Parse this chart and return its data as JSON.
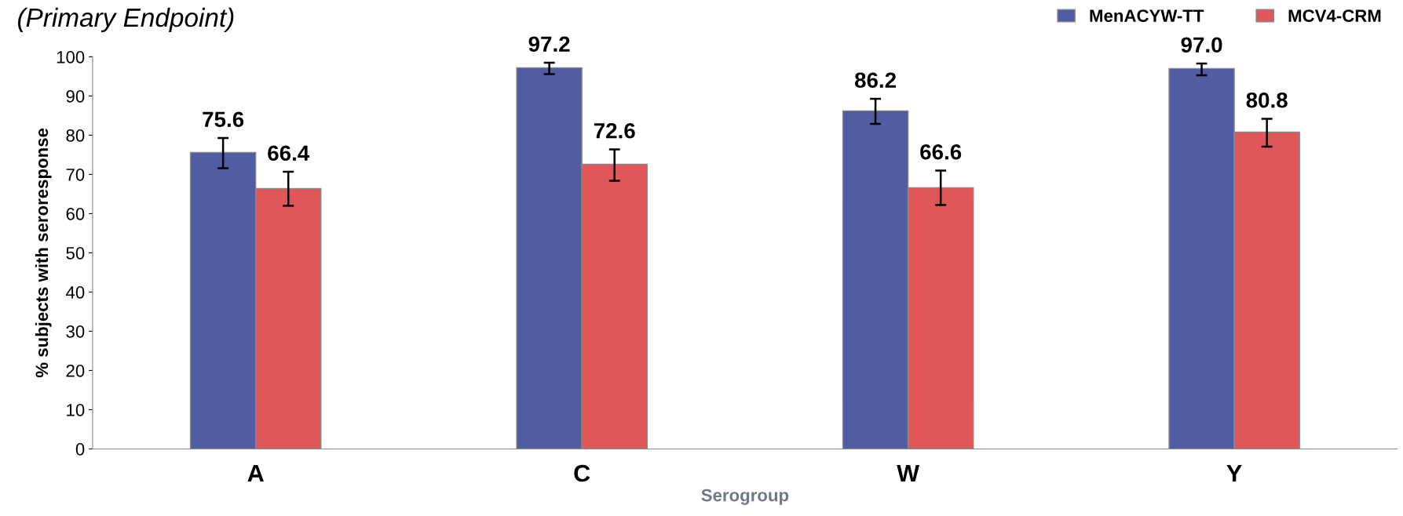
{
  "chart_data": {
    "type": "bar",
    "title": "(Primary Endpoint)",
    "xlabel": "Serogroup",
    "ylabel": "% subjects with seroresponse",
    "categories": [
      "A",
      "C",
      "W",
      "Y"
    ],
    "series": [
      {
        "name": "MenACYW-TT",
        "color": "#525ca3",
        "values": [
          75.6,
          97.2,
          86.2,
          97.0
        ],
        "value_labels": [
          "75.6",
          "97.2",
          "86.2",
          "97.0"
        ],
        "errors": [
          [
            71.6,
            79.3
          ],
          [
            95.6,
            98.5
          ],
          [
            82.9,
            89.3
          ],
          [
            95.3,
            98.3
          ]
        ]
      },
      {
        "name": "MCV4-CRM",
        "color": "#e0575a",
        "values": [
          66.4,
          72.6,
          66.6,
          80.8
        ],
        "value_labels": [
          "66.4",
          "72.6",
          "66.6",
          "80.8"
        ],
        "errors": [
          [
            62.0,
            70.7
          ],
          [
            68.4,
            76.4
          ],
          [
            62.2,
            71.0
          ],
          [
            77.1,
            84.2
          ]
        ]
      }
    ],
    "ylim": [
      0,
      100
    ],
    "yticks": [
      0,
      10,
      20,
      30,
      40,
      50,
      60,
      70,
      80,
      90,
      100
    ],
    "legend": "top right",
    "grid": false
  }
}
